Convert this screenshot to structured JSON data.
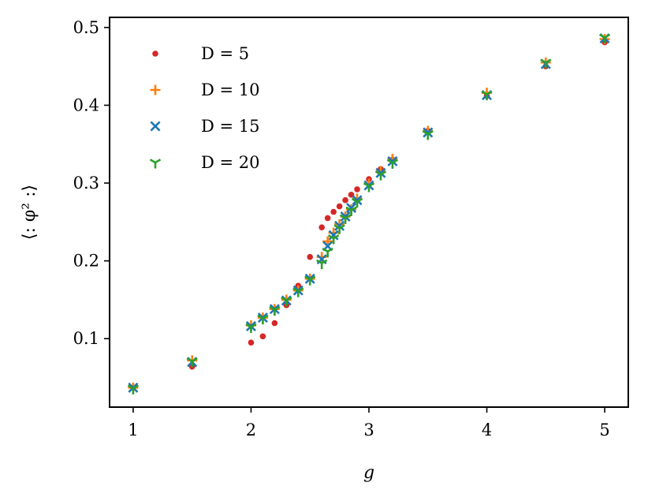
{
  "chart_data": {
    "type": "scatter",
    "xlabel": "g",
    "ylabel": "⟨: φ² :⟩",
    "xlim": [
      0.8,
      5.2
    ],
    "ylim": [
      0.012,
      0.513
    ],
    "xticks": [
      1,
      2,
      3,
      4,
      5
    ],
    "yticks": [
      0.1,
      0.2,
      0.3,
      0.4,
      0.5
    ],
    "xtick_labels": [
      "1",
      "2",
      "3",
      "4",
      "5"
    ],
    "ytick_labels": [
      "0.1",
      "0.2",
      "0.3",
      "0.4",
      "0.5"
    ],
    "grid": false,
    "legend_position": "top-left",
    "series": [
      {
        "name": "D = 5",
        "marker": "dot",
        "color": "#d62728",
        "points": [
          [
            1.0,
            0.037
          ],
          [
            1.5,
            0.064
          ],
          [
            2.0,
            0.095
          ],
          [
            2.1,
            0.103
          ],
          [
            2.2,
            0.12
          ],
          [
            2.3,
            0.143
          ],
          [
            2.4,
            0.168
          ],
          [
            2.5,
            0.205
          ],
          [
            2.6,
            0.243
          ],
          [
            2.65,
            0.255
          ],
          [
            2.7,
            0.263
          ],
          [
            2.75,
            0.27
          ],
          [
            2.8,
            0.278
          ],
          [
            2.85,
            0.285
          ],
          [
            2.9,
            0.292
          ],
          [
            3.0,
            0.305
          ],
          [
            3.1,
            0.318
          ],
          [
            3.2,
            0.33
          ],
          [
            3.5,
            0.367
          ],
          [
            4.0,
            0.412
          ],
          [
            4.5,
            0.45
          ],
          [
            5.0,
            0.481
          ]
        ]
      },
      {
        "name": "D = 10",
        "marker": "plus",
        "color": "#ff7f0e",
        "points": [
          [
            1.0,
            0.037
          ],
          [
            1.5,
            0.072
          ],
          [
            2.0,
            0.117
          ],
          [
            2.1,
            0.127
          ],
          [
            2.2,
            0.138
          ],
          [
            2.3,
            0.15
          ],
          [
            2.4,
            0.162
          ],
          [
            2.5,
            0.177
          ],
          [
            2.6,
            0.205
          ],
          [
            2.65,
            0.225
          ],
          [
            2.7,
            0.236
          ],
          [
            2.75,
            0.247
          ],
          [
            2.8,
            0.257
          ],
          [
            2.85,
            0.266
          ],
          [
            2.9,
            0.28
          ],
          [
            3.0,
            0.299
          ],
          [
            3.1,
            0.315
          ],
          [
            3.2,
            0.331
          ],
          [
            3.5,
            0.367
          ],
          [
            4.0,
            0.416
          ],
          [
            4.5,
            0.455
          ],
          [
            5.0,
            0.485
          ]
        ]
      },
      {
        "name": "D = 15",
        "marker": "x",
        "color": "#1f77b4",
        "points": [
          [
            1.0,
            0.037
          ],
          [
            1.5,
            0.07
          ],
          [
            2.0,
            0.116
          ],
          [
            2.1,
            0.127
          ],
          [
            2.2,
            0.138
          ],
          [
            2.3,
            0.149
          ],
          [
            2.4,
            0.162
          ],
          [
            2.5,
            0.177
          ],
          [
            2.6,
            0.202
          ],
          [
            2.65,
            0.219
          ],
          [
            2.7,
            0.233
          ],
          [
            2.75,
            0.245
          ],
          [
            2.8,
            0.257
          ],
          [
            2.85,
            0.268
          ],
          [
            2.9,
            0.278
          ],
          [
            3.0,
            0.297
          ],
          [
            3.1,
            0.313
          ],
          [
            3.2,
            0.328
          ],
          [
            3.5,
            0.365
          ],
          [
            4.0,
            0.413
          ],
          [
            4.5,
            0.453
          ],
          [
            5.0,
            0.486
          ]
        ]
      },
      {
        "name": "D = 20",
        "marker": "tri",
        "color": "#2ca02c",
        "points": [
          [
            1.0,
            0.036
          ],
          [
            1.5,
            0.071
          ],
          [
            2.0,
            0.115
          ],
          [
            2.1,
            0.126
          ],
          [
            2.2,
            0.137
          ],
          [
            2.3,
            0.149
          ],
          [
            2.4,
            0.161
          ],
          [
            2.5,
            0.176
          ],
          [
            2.6,
            0.197
          ],
          [
            2.65,
            0.212
          ],
          [
            2.7,
            0.229
          ],
          [
            2.75,
            0.242
          ],
          [
            2.8,
            0.255
          ],
          [
            2.85,
            0.265
          ],
          [
            2.9,
            0.276
          ],
          [
            3.0,
            0.296
          ],
          [
            3.1,
            0.311
          ],
          [
            3.2,
            0.326
          ],
          [
            3.5,
            0.363
          ],
          [
            4.0,
            0.414
          ],
          [
            4.5,
            0.455
          ],
          [
            5.0,
            0.487
          ]
        ]
      }
    ]
  }
}
